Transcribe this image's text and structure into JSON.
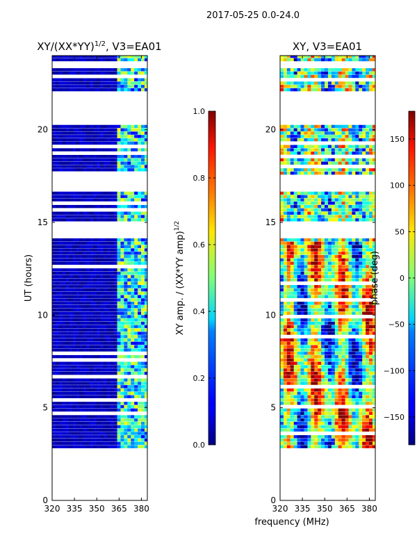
{
  "suptitle": "2017-05-25 0.0-24.0",
  "xlabel_shared": "frequency (MHz)",
  "chart_data": [
    {
      "type": "heatmap",
      "title": "XY/(XX*YY)",
      "title_superscript": "1/2",
      "title_suffix": ", V3=EA01",
      "xlabel": "",
      "ylabel": "UT (hours)",
      "xlim": [
        320,
        384
      ],
      "ylim": [
        0,
        24
      ],
      "xticks": [
        320,
        335,
        350,
        365,
        380
      ],
      "yticks": [
        0,
        5,
        10,
        15,
        20
      ],
      "colorbar": {
        "label": "XY amp. / (XX*YY amp)",
        "label_superscript": "1/2",
        "range": [
          0.0,
          1.0
        ],
        "ticks": [
          "0.0",
          "0.2",
          "0.4",
          "0.6",
          "0.8",
          "1.0"
        ],
        "colormap": "jet"
      },
      "data_time_range_hours": [
        2.8,
        24.0
      ],
      "blank_time_intervals_hours": [
        [
          14.2,
          15.0
        ],
        [
          16.6,
          17.6
        ],
        [
          20.3,
          22.0
        ],
        [
          23.3,
          23.7
        ]
      ],
      "bright_channel_band_mhz": [
        362,
        384
      ]
    },
    {
      "type": "heatmap",
      "title": "XY",
      "title_superscript": "",
      "title_suffix": ", V3=EA01",
      "xlabel": "frequency (MHz)",
      "ylabel": "",
      "xlim": [
        320,
        384
      ],
      "ylim": [
        0,
        24
      ],
      "xticks": [
        320,
        335,
        350,
        365,
        380
      ],
      "yticks": [
        0,
        5,
        10,
        15,
        20
      ],
      "colorbar": {
        "label": "phase (deg)",
        "label_superscript": "",
        "range": [
          -180,
          180
        ],
        "ticks": [
          "−150",
          "−100",
          "−50",
          "0",
          "50",
          "100",
          "150"
        ],
        "colormap": "jet"
      },
      "data_time_range_hours": [
        2.8,
        24.0
      ],
      "blank_time_intervals_hours": [
        [
          14.2,
          15.0
        ],
        [
          16.6,
          17.6
        ],
        [
          20.3,
          22.0
        ],
        [
          23.3,
          23.7
        ]
      ]
    }
  ]
}
